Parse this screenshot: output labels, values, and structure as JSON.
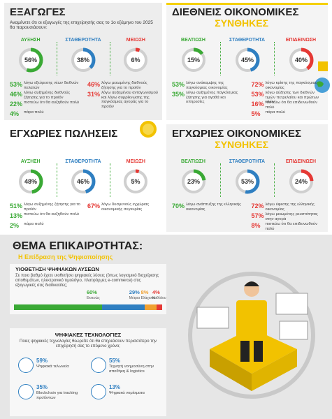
{
  "sections": [
    {
      "title": "ΕΞΑΓΩΓΕΣ",
      "subtitle": "Αναμένετε ότι οι εξαγωγές της επιχείρησής σας το 1ο εξάμηνο του 2025 θα παρουσιάσουν:",
      "donuts": [
        {
          "label": "ΑΥΞΗΣΗ",
          "value": 56,
          "value_label": "56%",
          "color": "#3aa935"
        },
        {
          "label": "ΣΤΑΘΕΡΟΤΗΤΑ",
          "value": 38,
          "value_label": "38%",
          "color": "#2f7fc1"
        },
        {
          "label": "ΜΕΙΩΣΗ",
          "value": 6,
          "value_label": "6%",
          "color": "#e53935"
        }
      ],
      "reasons_left": [
        {
          "value": "53%",
          "text": "λόγω εξεύρεσης νέων διεθνών πελατών"
        },
        {
          "value": "46%",
          "text": "λόγω αυξημένης διεθνούς ζήτησης για το προϊόν"
        },
        {
          "value": "22%",
          "text": "πιστεύω ότι θα αυξηθούν πολύ"
        },
        {
          "value": "4%",
          "text": "πάρα πολύ"
        }
      ],
      "reasons_right": [
        {
          "value": "46%",
          "text": "λόγω μειωμένης διεθνούς ζήτησης για το προϊόν"
        },
        {
          "value": "31%",
          "text": "λόγω αυξημένου ανταγωνισμού και λόγω συρρίκνωσης της παγκόσμιας αγοράς για το προϊόν"
        }
      ]
    },
    {
      "title": "ΔΙΕΘΝΕΙΣ ΟΙΚΟΝΟΜΙΚΕΣ",
      "title2": "ΣΥΝΘΗΚΕΣ",
      "donuts": [
        {
          "label": "ΒΕΛΤΙΩΣΗ",
          "value": 15,
          "value_label": "15%",
          "color": "#3aa935"
        },
        {
          "label": "ΣΤΑΘΕΡΟΤΗΤΑ",
          "value": 45,
          "value_label": "45%",
          "color": "#2f7fc1"
        },
        {
          "label": "ΕΠΙΔΕΙΝΩΣΗ",
          "value": 40,
          "value_label": "40%",
          "color": "#e53935"
        }
      ],
      "reasons_left": [
        {
          "value": "53%",
          "text": "λόγω ανάκαμψης της παγκόσμιας οικονομίας"
        },
        {
          "value": "35%",
          "text": "λόγω αυξημένης παγκόσμιας ζήτησης για αγαθά και υπηρεσίες"
        }
      ],
      "reasons_right": [
        {
          "value": "72%",
          "text": "λόγω κρίσης της παγκόσμιας οικονομίας"
        },
        {
          "value": "53%",
          "text": "λόγω αύξησης των διεθνών τιμών πετρελαίου και πρώτων υλών"
        },
        {
          "value": "16%",
          "text": "πιστεύω ότι θα επιδεινωθούν πολύ"
        },
        {
          "value": "5%",
          "text": "πάρα πολύ"
        }
      ]
    },
    {
      "title": "ΕΓΧΩΡΙΕΣ ΠΩΛΗΣΕΙΣ",
      "donuts": [
        {
          "label": "ΑΥΞΗΣΗ",
          "value": 48,
          "value_label": "48%",
          "color": "#3aa935"
        },
        {
          "label": "ΣΤΑΘΕΡΟΤΗΤΑ",
          "value": 46,
          "value_label": "46%",
          "color": "#2f7fc1"
        },
        {
          "label": "ΜΕΙΩΣΗ",
          "value": 5,
          "value_label": "5%",
          "color": "#e53935"
        }
      ],
      "reasons_left": [
        {
          "value": "51%",
          "text": "λόγω αυξημένης ζήτησης για το προϊόν"
        },
        {
          "value": "13%",
          "text": "πιστεύω ότι θα αυξηθούν πολύ"
        },
        {
          "value": "2%",
          "text": "πάρα πολύ"
        }
      ],
      "reasons_right": [
        {
          "value": "67%",
          "text": "λόγω δυσμενούς εγχώριας οικονομικής συγκυρίας"
        }
      ]
    },
    {
      "title": "ΕΓΧΩΡΙΕΣ ΟΙΚΟΝΟΜΙΚΕΣ",
      "title2": "ΣΥΝΘΗΚΕΣ",
      "donuts": [
        {
          "label": "ΒΕΛΤΙΩΣΗ",
          "value": 23,
          "value_label": "23%",
          "color": "#3aa935"
        },
        {
          "label": "ΣΤΑΘΕΡΟΤΗΤΑ",
          "value": 53,
          "value_label": "53%",
          "color": "#2f7fc1"
        },
        {
          "label": "ΕΠΙΔΕΙΝΩΣΗ",
          "value": 24,
          "value_label": "24%",
          "color": "#e53935"
        }
      ],
      "reasons_left": [
        {
          "value": "70%",
          "text": "λόγω ανάπτυξης της ελληνικής οικονομίας"
        }
      ],
      "reasons_right": [
        {
          "value": "72%",
          "text": "λόγω ύφεσης της ελληνικής οικονομίας"
        },
        {
          "value": "57%",
          "text": "λόγω μειωμένης ρευστότητας στην αγορά"
        },
        {
          "value": "8%",
          "text": "πιστεύω ότι θα επιδεινωθούν πολύ"
        }
      ]
    }
  ],
  "topic": {
    "title": "ΘΕΜΑ ΕΠΙΚΑΙΡΟΤΗΤΑΣ:",
    "subtitle": "Η Επίδραση της Ψηφιοποίησης",
    "adoption": {
      "title": "ΥΙΟΘΕΤΗΣΗ ΨΗΦΙΑΚΩΝ ΛΥΣΕΩΝ",
      "question": "Σε ποιο βαθμό έχετε υιοθετήσει ψηφιακές λύσεις (όπως λογισμικό διαχείρισης αποθεμάτων, ηλεκτρονικό τιμολόγιο, πλατφόρμες e-commerce) στις εξαγωγικές σας διαδικασίες;",
      "segments": [
        {
          "name": "Εκτενώς",
          "value": 60,
          "value_label": "60%",
          "color": "#3aa935"
        },
        {
          "name": "Μέτρια",
          "value": 29,
          "value_label": "29%",
          "color": "#2f7fc1"
        },
        {
          "name": "Ελάχιστα",
          "value": 8,
          "value_label": "8%",
          "color": "#f0a030"
        },
        {
          "name": "Καθόλου",
          "value": 4,
          "value_label": "4%",
          "color": "#e53935"
        }
      ]
    },
    "technologies": {
      "title": "ΨΗΦΙΑΚΕΣ ΤΕΧΝΟΛΟΓΙΕΣ",
      "question": "Ποιες ψηφιακές τεχνολογίες θεωρείτε ότι θα επηρεάσουν περισσότερο την επιχείρησή σας το επόμενο χρόνο;",
      "items": [
        {
          "value": "59%",
          "text": "Ψηφιακά τελωνεία"
        },
        {
          "value": "55%",
          "text": "Τεχνητή νοημοσύνη στην αποθήκη & logistics"
        },
        {
          "value": "35%",
          "text": "Blockchain για tracking προϊόντων"
        },
        {
          "value": "13%",
          "text": "Ψηφιακά νομίσματα"
        }
      ]
    }
  }
}
